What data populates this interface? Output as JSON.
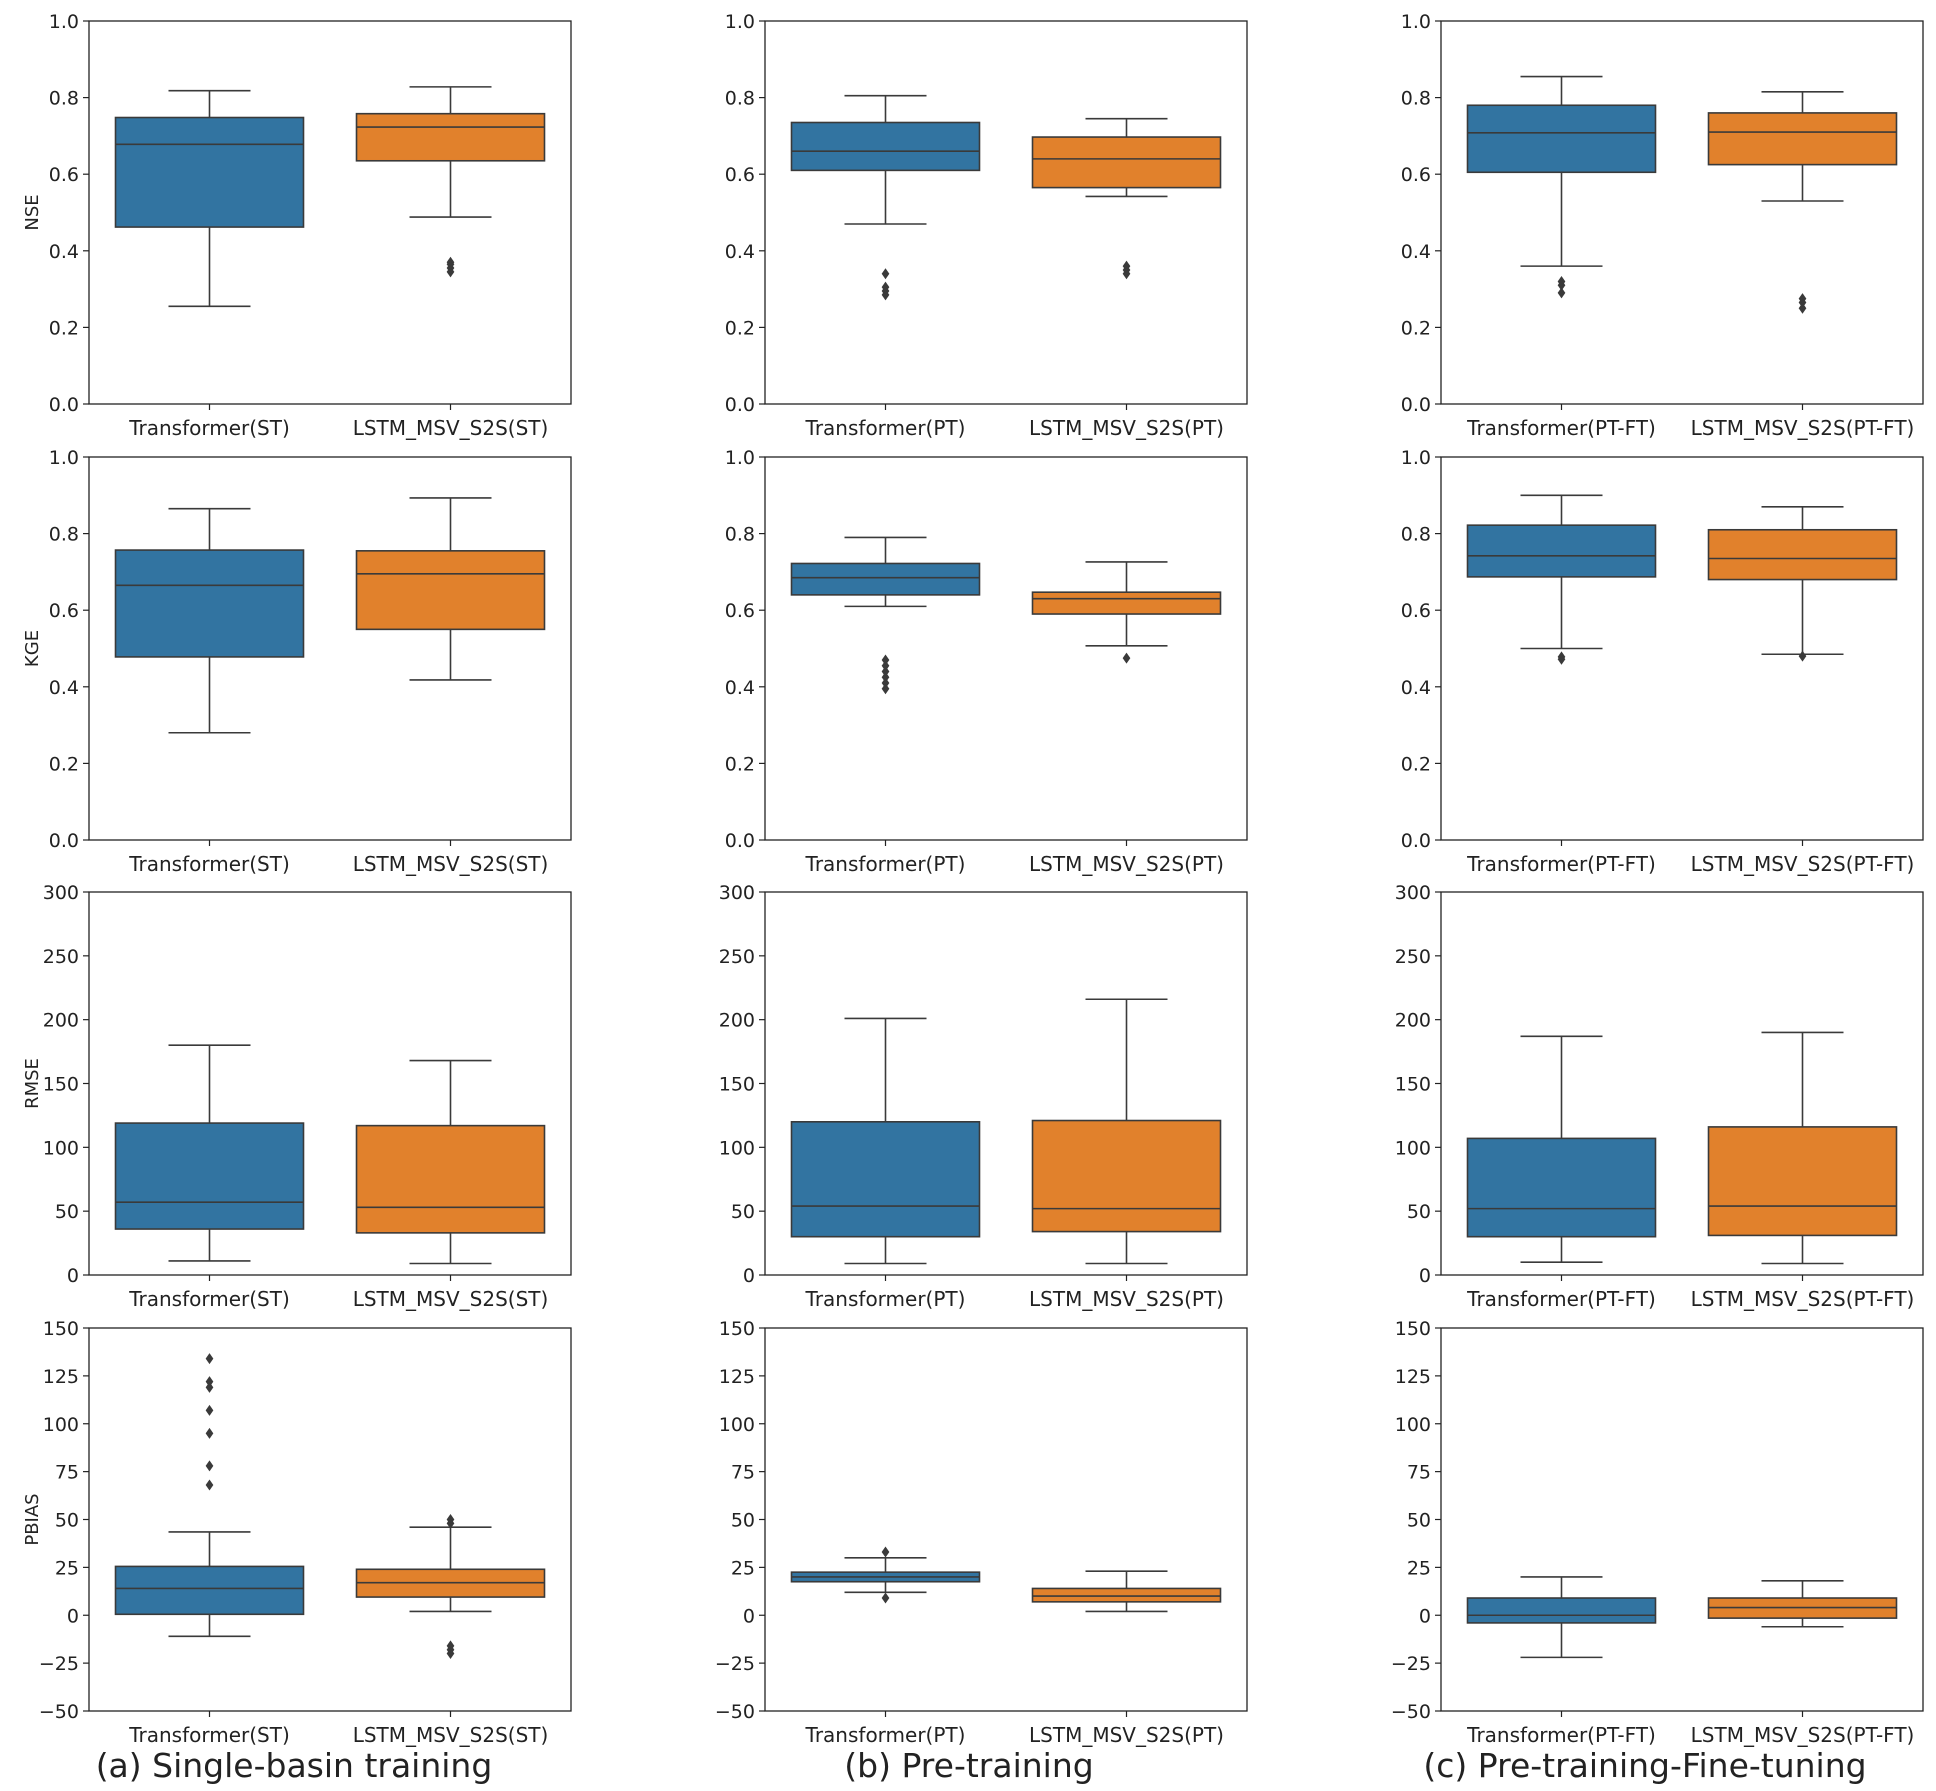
{
  "colors": {
    "transformer": "#3274a1",
    "lstm": "#e1812c",
    "line": "#3a3a3a"
  },
  "columns": [
    {
      "caption": "(a) Single-basin training",
      "categories": [
        "Transformer(ST)",
        "LSTM_MSV_S2S(ST)"
      ]
    },
    {
      "caption": "(b) Pre-training",
      "categories": [
        "Transformer(PT)",
        "LSTM_MSV_S2S(PT)"
      ]
    },
    {
      "caption": "(c) Pre-training-Fine-tuning",
      "categories": [
        "Transformer(PT-FT)",
        "LSTM_MSV_S2S(PT-FT)"
      ]
    }
  ],
  "chart_data": [
    {
      "type": "box",
      "ylabel": "NSE",
      "ylim": [
        0,
        1.0
      ],
      "ticks": [
        "0.0",
        "0.2",
        "0.4",
        "0.6",
        "0.8",
        "1.0"
      ],
      "tick_values": [
        0,
        0.2,
        0.4,
        0.6,
        0.8,
        1.0
      ],
      "panels": [
        {
          "boxes": [
            {
              "whislo": 0.255,
              "q1": 0.462,
              "med": 0.678,
              "q3": 0.748,
              "whishi": 0.818,
              "fliers": []
            },
            {
              "whislo": 0.488,
              "q1": 0.635,
              "med": 0.723,
              "q3": 0.758,
              "whishi": 0.828,
              "fliers": [
                0.345,
                0.355,
                0.365,
                0.37
              ]
            }
          ]
        },
        {
          "boxes": [
            {
              "whislo": 0.47,
              "q1": 0.61,
              "med": 0.66,
              "q3": 0.735,
              "whishi": 0.805,
              "fliers": [
                0.285,
                0.295,
                0.305,
                0.34
              ]
            },
            {
              "whislo": 0.542,
              "q1": 0.565,
              "med": 0.64,
              "q3": 0.697,
              "whishi": 0.745,
              "fliers": [
                0.34,
                0.35,
                0.36
              ]
            }
          ]
        },
        {
          "boxes": [
            {
              "whislo": 0.36,
              "q1": 0.605,
              "med": 0.708,
              "q3": 0.78,
              "whishi": 0.855,
              "fliers": [
                0.29,
                0.31,
                0.32
              ]
            },
            {
              "whislo": 0.53,
              "q1": 0.625,
              "med": 0.71,
              "q3": 0.76,
              "whishi": 0.815,
              "fliers": [
                0.25,
                0.265,
                0.275
              ]
            }
          ]
        }
      ]
    },
    {
      "type": "box",
      "ylabel": "KGE",
      "ylim": [
        0,
        1.0
      ],
      "ticks": [
        "0.0",
        "0.2",
        "0.4",
        "0.6",
        "0.8",
        "1.0"
      ],
      "tick_values": [
        0,
        0.2,
        0.4,
        0.6,
        0.8,
        1.0
      ],
      "panels": [
        {
          "boxes": [
            {
              "whislo": 0.28,
              "q1": 0.478,
              "med": 0.665,
              "q3": 0.757,
              "whishi": 0.865,
              "fliers": []
            },
            {
              "whislo": 0.418,
              "q1": 0.55,
              "med": 0.695,
              "q3": 0.755,
              "whishi": 0.893,
              "fliers": []
            }
          ]
        },
        {
          "boxes": [
            {
              "whislo": 0.61,
              "q1": 0.64,
              "med": 0.685,
              "q3": 0.722,
              "whishi": 0.79,
              "fliers": [
                0.395,
                0.41,
                0.425,
                0.44,
                0.455,
                0.47
              ]
            },
            {
              "whislo": 0.507,
              "q1": 0.59,
              "med": 0.63,
              "q3": 0.647,
              "whishi": 0.726,
              "fliers": [
                0.475
              ]
            }
          ]
        },
        {
          "boxes": [
            {
              "whislo": 0.5,
              "q1": 0.687,
              "med": 0.742,
              "q3": 0.822,
              "whishi": 0.9,
              "fliers": [
                0.472,
                0.478
              ]
            },
            {
              "whislo": 0.485,
              "q1": 0.68,
              "med": 0.735,
              "q3": 0.81,
              "whishi": 0.87,
              "fliers": [
                0.48
              ]
            }
          ]
        }
      ]
    },
    {
      "type": "box",
      "ylabel": "RMSE",
      "ylim": [
        0,
        300
      ],
      "ticks": [
        "0",
        "50",
        "100",
        "150",
        "200",
        "250",
        "300"
      ],
      "tick_values": [
        0,
        50,
        100,
        150,
        200,
        250,
        300
      ],
      "panels": [
        {
          "boxes": [
            {
              "whislo": 11,
              "q1": 36,
              "med": 57,
              "q3": 119,
              "whishi": 180,
              "fliers": []
            },
            {
              "whislo": 9,
              "q1": 33,
              "med": 53,
              "q3": 117,
              "whishi": 168,
              "fliers": []
            }
          ]
        },
        {
          "boxes": [
            {
              "whislo": 9,
              "q1": 30,
              "med": 54,
              "q3": 120,
              "whishi": 201,
              "fliers": []
            },
            {
              "whislo": 9,
              "q1": 34,
              "med": 52,
              "q3": 121,
              "whishi": 216,
              "fliers": []
            }
          ]
        },
        {
          "boxes": [
            {
              "whislo": 10,
              "q1": 30,
              "med": 52,
              "q3": 107,
              "whishi": 187,
              "fliers": []
            },
            {
              "whislo": 9,
              "q1": 31,
              "med": 54,
              "q3": 116,
              "whishi": 190,
              "fliers": []
            }
          ]
        }
      ]
    },
    {
      "type": "box",
      "ylabel": "PBIAS",
      "ylim": [
        -50,
        150
      ],
      "ticks": [
        "−50",
        "−25",
        "0",
        "25",
        "50",
        "75",
        "100",
        "125",
        "150"
      ],
      "tick_values": [
        -50,
        -25,
        0,
        25,
        50,
        75,
        100,
        125,
        150
      ],
      "panels": [
        {
          "boxes": [
            {
              "whislo": -11,
              "q1": 0.5,
              "med": 14,
              "q3": 25.5,
              "whishi": 43.5,
              "fliers": [
                68,
                78,
                95,
                107,
                119,
                122,
                134
              ]
            },
            {
              "whislo": 2,
              "q1": 9.5,
              "med": 17,
              "q3": 24,
              "whishi": 46,
              "fliers": [
                -20,
                -18,
                -16,
                48,
                50
              ]
            }
          ]
        },
        {
          "boxes": [
            {
              "whislo": 12,
              "q1": 17.5,
              "med": 20,
              "q3": 22.5,
              "whishi": 30,
              "fliers": [
                9,
                33
              ]
            },
            {
              "whislo": 2,
              "q1": 7,
              "med": 10,
              "q3": 14,
              "whishi": 23,
              "fliers": []
            }
          ]
        },
        {
          "boxes": [
            {
              "whislo": -22,
              "q1": -4,
              "med": 0,
              "q3": 9,
              "whishi": 20,
              "fliers": []
            },
            {
              "whislo": -6,
              "q1": -1.5,
              "med": 4,
              "q3": 9,
              "whishi": 18,
              "fliers": []
            }
          ]
        }
      ]
    }
  ]
}
